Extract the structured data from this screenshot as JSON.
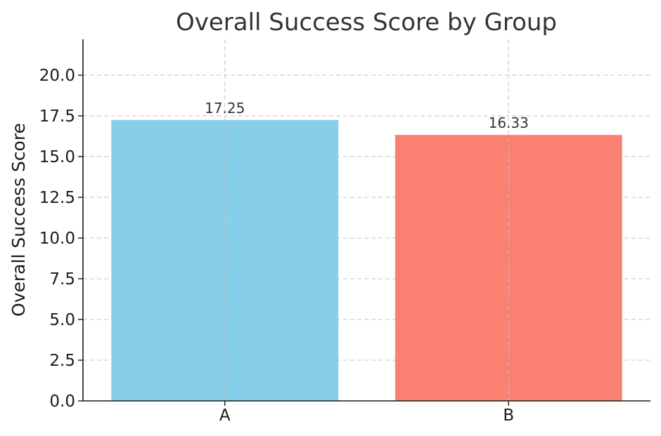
{
  "chart_data": {
    "type": "bar",
    "title": "Overall Success Score by Group",
    "xlabel": "",
    "ylabel": "Overall Success Score",
    "categories": [
      "A",
      "B"
    ],
    "values": [
      17.25,
      16.33
    ],
    "value_labels": [
      "17.25",
      "16.33"
    ],
    "bar_colors": [
      "#87CEEB",
      "#FA8072"
    ],
    "ylim": [
      0,
      22.2
    ],
    "yticks": [
      0,
      2.5,
      5,
      7.5,
      10,
      12.5,
      15,
      17.5,
      20
    ],
    "ytick_labels": [
      "0.0",
      "2.5",
      "5.0",
      "7.5",
      "10.0",
      "12.5",
      "15.0",
      "17.5",
      "20.0"
    ],
    "grid": true,
    "legend": "none"
  }
}
